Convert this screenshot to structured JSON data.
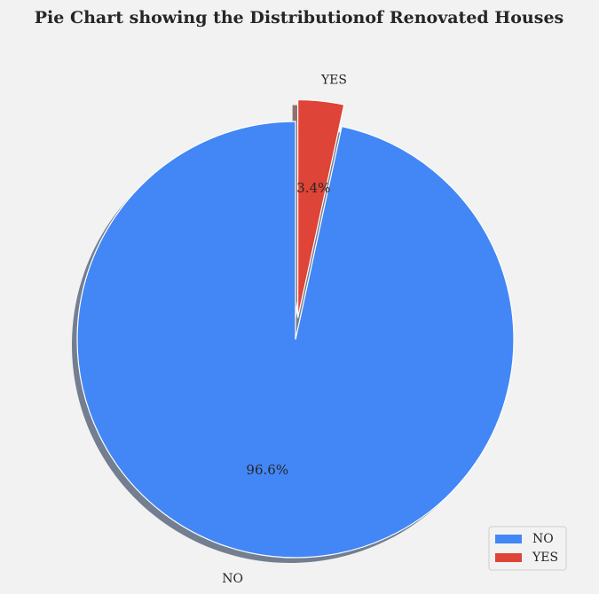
{
  "chart_data": {
    "type": "pie",
    "title": "Pie Chart showing the Distributionof Renovated Houses",
    "categories": [
      "NO",
      "YES"
    ],
    "values": [
      96.6,
      3.4
    ],
    "percent_labels": [
      "96.6%",
      "3.4%"
    ],
    "colors": [
      "#4287f5",
      "#de4437"
    ],
    "exploded": [
      false,
      true
    ],
    "shadow": true,
    "legend_placement": "lower-right",
    "legend": [
      "NO",
      "YES"
    ]
  }
}
